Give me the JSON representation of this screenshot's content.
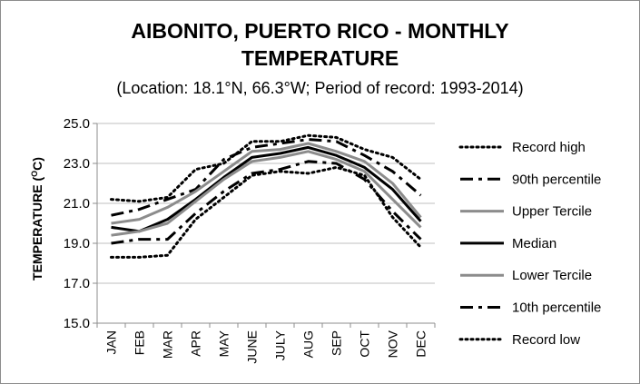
{
  "chart_data": {
    "type": "line",
    "title_line1": "AIBONITO, PUERTO RICO - MONTHLY",
    "title_line2": "TEMPERATURE",
    "subtitle": "(Location: 18.1°N, 66.3°W; Period of record: 1993-2014)",
    "ylabel_prefix": "TEMPERATURE (",
    "ylabel_sup": "O",
    "ylabel_suffix": "C)",
    "xlabel": "",
    "categories": [
      "JAN",
      "FEB",
      "MAR",
      "APR",
      "MAY",
      "JUNE",
      "JULY",
      "AUG",
      "SEP",
      "OCT",
      "NOV",
      "DEC"
    ],
    "ylim": [
      15.0,
      25.0
    ],
    "yticks": [
      "15.0",
      "17.0",
      "19.0",
      "21.0",
      "23.0",
      "25.0"
    ],
    "grid": true,
    "legend_position": "right",
    "series": [
      {
        "name": "Record high",
        "color": "#000000",
        "style": "dotted",
        "values": [
          21.2,
          21.1,
          21.3,
          22.7,
          23.0,
          24.1,
          24.1,
          24.4,
          24.3,
          23.7,
          23.3,
          22.2
        ]
      },
      {
        "name": "90th percentile",
        "color": "#000000",
        "style": "dashdot",
        "values": [
          20.4,
          20.7,
          21.2,
          21.7,
          23.2,
          23.8,
          24.0,
          24.2,
          24.1,
          23.4,
          22.6,
          21.4
        ]
      },
      {
        "name": "Upper Tercile",
        "color": "#8c8c8c",
        "style": "solid",
        "values": [
          20.0,
          20.2,
          20.8,
          21.6,
          22.6,
          23.6,
          23.7,
          24.0,
          23.6,
          23.1,
          22.0,
          20.3
        ]
      },
      {
        "name": "Median",
        "color": "#000000",
        "style": "solid",
        "values": [
          19.8,
          19.6,
          20.2,
          21.2,
          22.3,
          23.3,
          23.5,
          23.8,
          23.4,
          22.8,
          21.7,
          20.1
        ]
      },
      {
        "name": "Lower Tercile",
        "color": "#8c8c8c",
        "style": "solid",
        "values": [
          19.4,
          19.6,
          20.0,
          21.1,
          22.2,
          23.1,
          23.3,
          23.6,
          23.2,
          22.6,
          21.2,
          19.8
        ]
      },
      {
        "name": "10th percentile",
        "color": "#000000",
        "style": "dashdot",
        "values": [
          19.0,
          19.2,
          19.2,
          20.5,
          21.6,
          22.5,
          22.7,
          23.1,
          23.0,
          22.2,
          20.6,
          19.2
        ]
      },
      {
        "name": "Record low",
        "color": "#000000",
        "style": "dotted",
        "values": [
          18.3,
          18.3,
          18.4,
          20.2,
          21.3,
          22.4,
          22.6,
          22.5,
          22.8,
          22.4,
          20.3,
          18.8
        ]
      }
    ]
  }
}
